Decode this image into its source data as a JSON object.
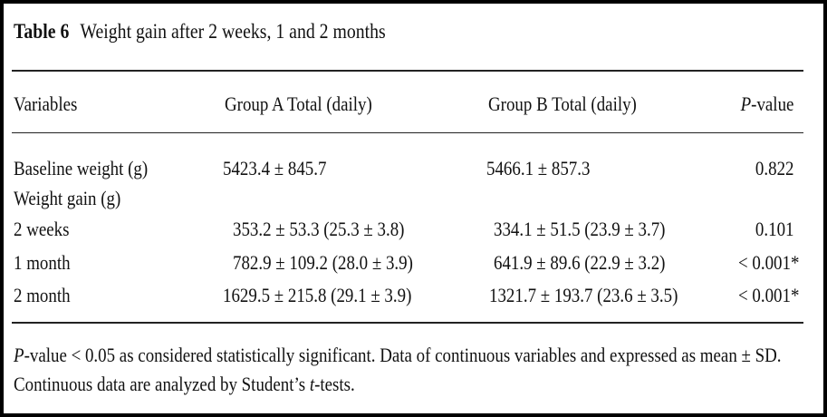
{
  "caption": {
    "label": "Table 6",
    "title": "Weight gain after 2 weeks, 1 and 2 months"
  },
  "header": {
    "variables": "Variables",
    "group_a": "Group A Total (daily)",
    "group_b": "Group B Total (daily)",
    "p_italic": "P",
    "p_rest": "-value"
  },
  "rows": [
    {
      "variable": "Baseline weight (g)",
      "group_a": "5423.4 ± 845.7",
      "group_b": "5466.1 ± 857.3",
      "p": "0.822"
    },
    {
      "variable": "Weight gain (g)",
      "group_a": "",
      "group_b": "",
      "p": ""
    },
    {
      "variable": "2 weeks",
      "group_a": "353.2 ± 53.3 (25.3 ± 3.8)",
      "group_b": "334.1 ± 51.5 (23.9 ± 3.7)",
      "p": "0.101"
    },
    {
      "variable": "1 month",
      "group_a": "782.9 ± 109.2 (28.0 ± 3.9)",
      "group_b": "641.9 ± 89.6 (22.9 ± 3.2)",
      "p": "< 0.001*"
    },
    {
      "variable": "2 month",
      "group_a": "1629.5 ± 215.8 (29.1 ± 3.9)",
      "group_b": "1321.7 ± 193.7 (23.6 ± 3.5)",
      "p": "< 0.001*"
    }
  ],
  "footnote": {
    "line1_italic": "P",
    "line1_rest": "-value < 0.05 as considered statistically significant. Data of continuous variables and expressed as mean ± SD.",
    "line2_pre": "Continuous data are analyzed by Student’s ",
    "line2_italic": "t",
    "line2_post": "-tests."
  }
}
